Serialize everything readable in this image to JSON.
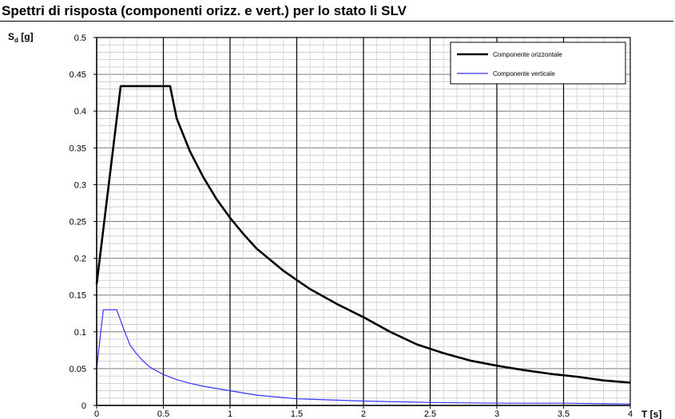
{
  "chart_data": {
    "type": "line",
    "title": "Spettri di risposta (componenti orizz. e vert.) per lo stato li SLV",
    "ylabel_main": "S",
    "ylabel_sub": "d",
    "ylabel_unit": " [g]",
    "xlabel": "T  [s]",
    "xlim": [
      0,
      4
    ],
    "ylim": [
      0,
      0.5
    ],
    "xticks": [
      "0",
      "0.5",
      "1",
      "1.5",
      "2",
      "2.5",
      "3",
      "3.5",
      "4"
    ],
    "yticks": [
      "0",
      "0.05",
      "0.1",
      "0.15",
      "0.2",
      "0.25",
      "0.3",
      "0.35",
      "0.4",
      "0.45",
      "0.5"
    ],
    "grid": true,
    "legend_position": "top-right",
    "series": [
      {
        "name": "Componente orizzontale",
        "color": "#000000",
        "x": [
          0,
          0.18,
          0.55,
          0.6,
          0.7,
          0.8,
          0.9,
          1.0,
          1.1,
          1.2,
          1.4,
          1.6,
          1.8,
          2.0,
          2.2,
          2.4,
          2.6,
          2.8,
          3.0,
          3.2,
          3.4,
          3.6,
          3.8,
          4.0
        ],
        "y": [
          0.165,
          0.434,
          0.434,
          0.39,
          0.345,
          0.31,
          0.28,
          0.255,
          0.233,
          0.213,
          0.183,
          0.158,
          0.138,
          0.12,
          0.1,
          0.083,
          0.071,
          0.061,
          0.054,
          0.048,
          0.043,
          0.039,
          0.034,
          0.031
        ]
      },
      {
        "name": "Componente verticale",
        "color": "#3333ff",
        "x": [
          0,
          0.05,
          0.15,
          0.2,
          0.25,
          0.3,
          0.35,
          0.4,
          0.5,
          0.6,
          0.7,
          0.8,
          1.0,
          1.2,
          1.5,
          2.0,
          2.5,
          3.0,
          3.5,
          4.0
        ],
        "y": [
          0.05,
          0.13,
          0.13,
          0.105,
          0.082,
          0.07,
          0.06,
          0.052,
          0.042,
          0.035,
          0.03,
          0.026,
          0.02,
          0.014,
          0.009,
          0.006,
          0.004,
          0.003,
          0.003,
          0.002
        ]
      }
    ]
  }
}
